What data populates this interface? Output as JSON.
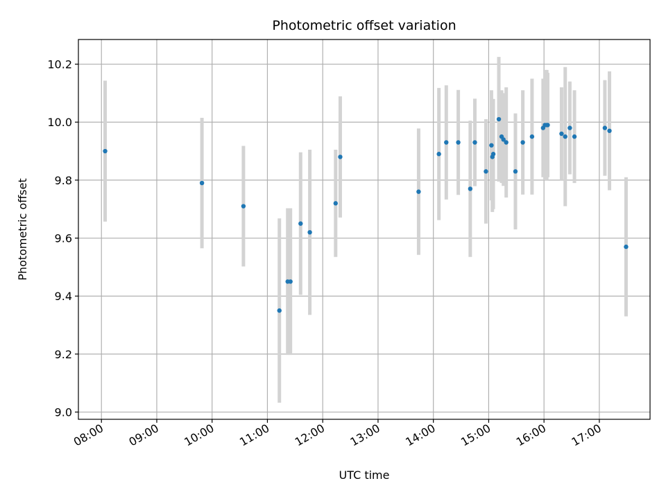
{
  "chart_data": {
    "type": "scatter",
    "title": "Photometric offset variation",
    "xlabel": "UTC time",
    "ylabel": "Photometric offset",
    "xlim": [
      "07:35",
      "17:55"
    ],
    "ylim": [
      8.975,
      10.285
    ],
    "grid": true,
    "x_ticks": [
      "08:00",
      "09:00",
      "10:00",
      "11:00",
      "12:00",
      "13:00",
      "14:00",
      "15:00",
      "16:00",
      "17:00"
    ],
    "y_ticks": [
      "9.0",
      "9.2",
      "9.4",
      "9.6",
      "9.8",
      "10.0",
      "10.2"
    ],
    "colors": {
      "point": "#1f77b4",
      "errorbar": "#d3d3d3",
      "grid": "#b0b0b0"
    },
    "points": [
      {
        "x": "08:04",
        "y": 9.9,
        "err": 0.243
      },
      {
        "x": "09:49",
        "y": 9.79,
        "err": 0.225
      },
      {
        "x": "10:34",
        "y": 9.71,
        "err": 0.208
      },
      {
        "x": "11:13",
        "y": 9.35,
        "err": 0.318
      },
      {
        "x": "11:22",
        "y": 9.45,
        "err": 0.253
      },
      {
        "x": "11:25",
        "y": 9.45,
        "err": 0.253
      },
      {
        "x": "11:36",
        "y": 9.65,
        "err": 0.246
      },
      {
        "x": "11:46",
        "y": 9.62,
        "err": 0.285
      },
      {
        "x": "12:14",
        "y": 9.72,
        "err": 0.185
      },
      {
        "x": "12:19",
        "y": 9.88,
        "err": 0.209
      },
      {
        "x": "13:44",
        "y": 9.76,
        "err": 0.218
      },
      {
        "x": "14:06",
        "y": 9.89,
        "err": 0.228
      },
      {
        "x": "14:14",
        "y": 9.93,
        "err": 0.197
      },
      {
        "x": "14:27",
        "y": 9.93,
        "err": 0.181
      },
      {
        "x": "14:40",
        "y": 9.77,
        "err": 0.235
      },
      {
        "x": "14:45",
        "y": 9.93,
        "err": 0.151
      },
      {
        "x": "14:57",
        "y": 9.83,
        "err": 0.18
      },
      {
        "x": "15:03",
        "y": 9.92,
        "err": 0.19
      },
      {
        "x": "15:04",
        "y": 9.88,
        "err": 0.19
      },
      {
        "x": "15:05",
        "y": 9.89,
        "err": 0.19
      },
      {
        "x": "15:11",
        "y": 10.01,
        "err": 0.215
      },
      {
        "x": "15:14",
        "y": 9.95,
        "err": 0.16
      },
      {
        "x": "15:16",
        "y": 9.94,
        "err": 0.16
      },
      {
        "x": "15:19",
        "y": 9.93,
        "err": 0.19
      },
      {
        "x": "15:29",
        "y": 9.83,
        "err": 0.2
      },
      {
        "x": "15:37",
        "y": 9.93,
        "err": 0.18
      },
      {
        "x": "15:47",
        "y": 9.95,
        "err": 0.2
      },
      {
        "x": "15:59",
        "y": 9.98,
        "err": 0.17
      },
      {
        "x": "16:01",
        "y": 9.99,
        "err": 0.19
      },
      {
        "x": "16:03",
        "y": 9.99,
        "err": 0.19
      },
      {
        "x": "16:04",
        "y": 9.99,
        "err": 0.18
      },
      {
        "x": "16:19",
        "y": 9.96,
        "err": 0.16
      },
      {
        "x": "16:23",
        "y": 9.95,
        "err": 0.24
      },
      {
        "x": "16:28",
        "y": 9.98,
        "err": 0.16
      },
      {
        "x": "16:33",
        "y": 9.95,
        "err": 0.16
      },
      {
        "x": "17:06",
        "y": 9.98,
        "err": 0.165
      },
      {
        "x": "17:11",
        "y": 9.97,
        "err": 0.205
      },
      {
        "x": "17:29",
        "y": 9.57,
        "err": 0.24
      }
    ]
  }
}
